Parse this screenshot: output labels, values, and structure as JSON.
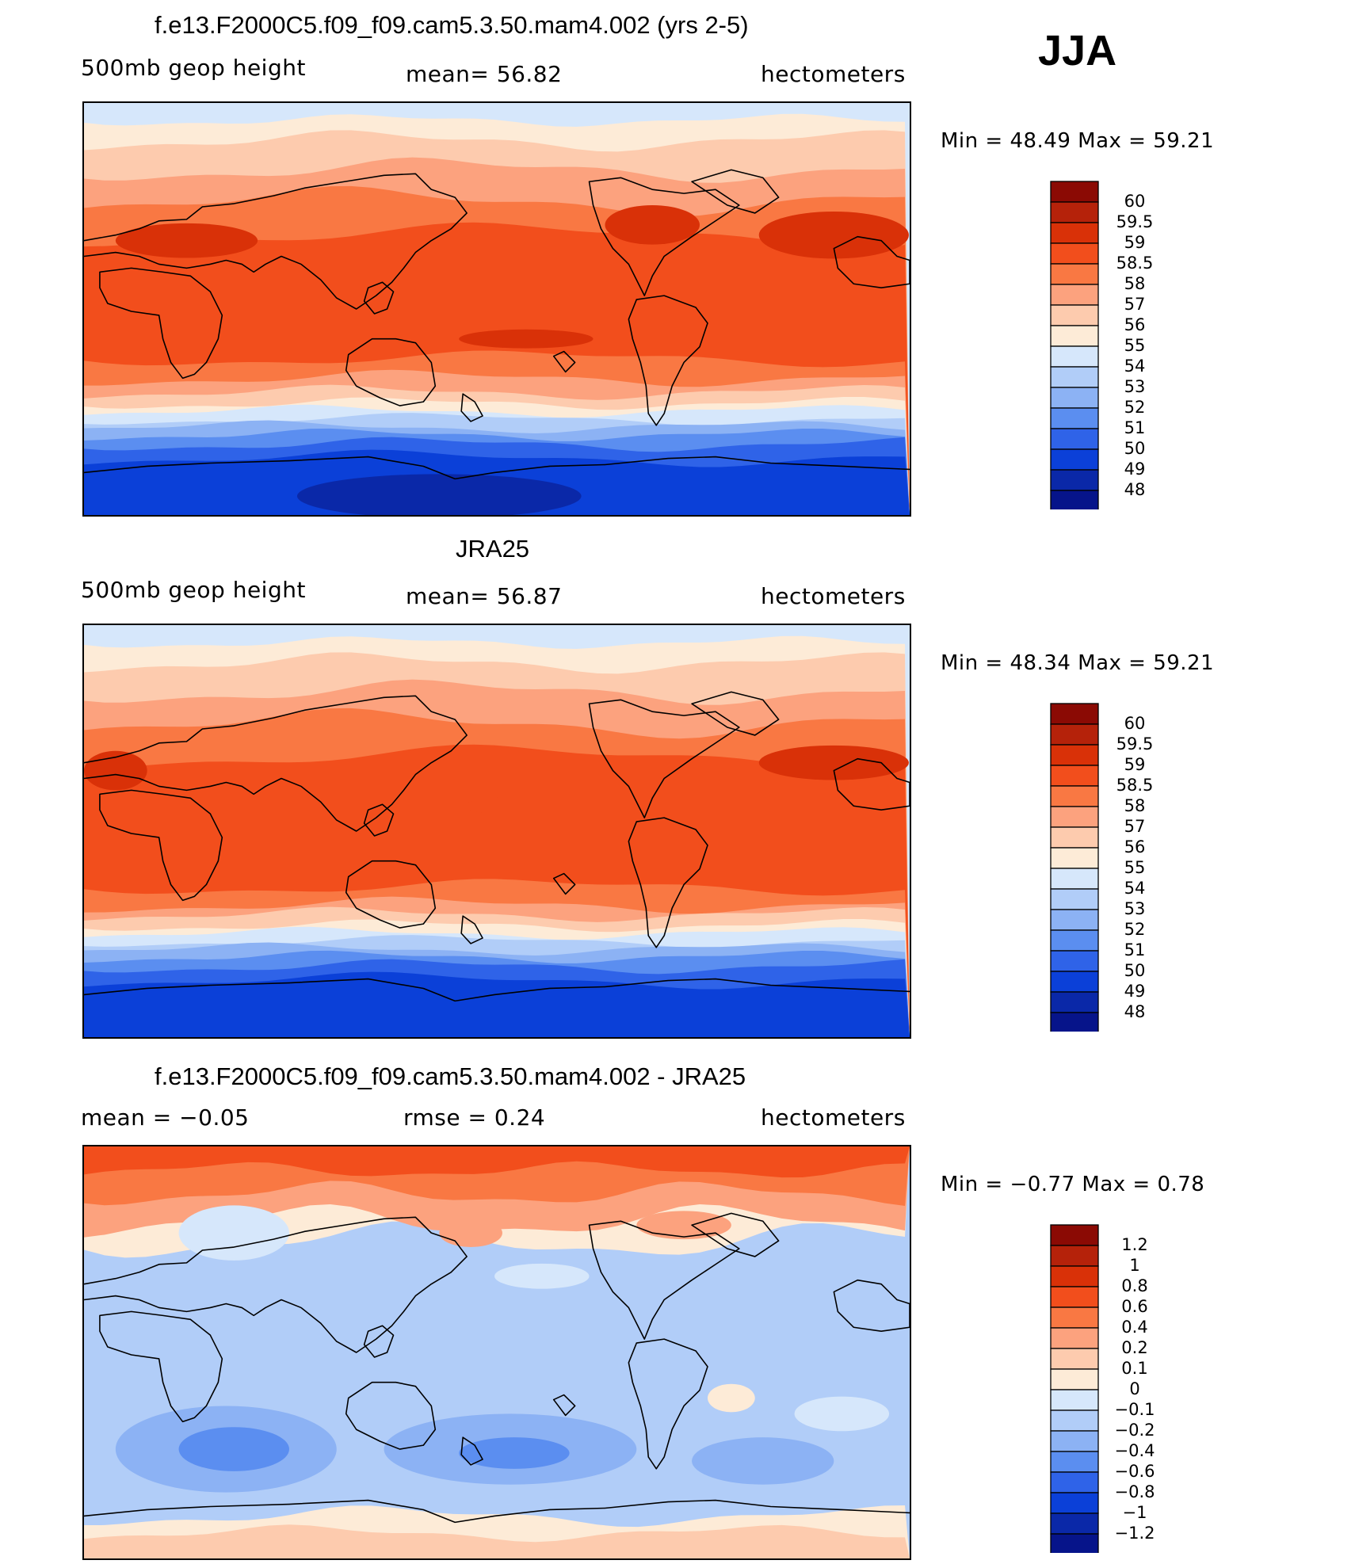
{
  "season": "JJA",
  "chart_data": [
    {
      "type": "heatmap",
      "title": "f.e13.F2000C5.f09_f09.cam5.3.50.mam4.002 (yrs 2-5)",
      "left_label": "500mb geop height",
      "center_label": "mean=   56.82",
      "right_label": "hectometers",
      "minmax_label": "Min =    48.49  Max =    59.21",
      "levels": [
        "60",
        "59.5",
        "59",
        "58.5",
        "58",
        "57",
        "56",
        "55",
        "54",
        "53",
        "52",
        "51",
        "50",
        "49",
        "48"
      ],
      "colors": [
        "#8b0a04",
        "#b5220a",
        "#d93108",
        "#f24e1c",
        "#f97843",
        "#fca27e",
        "#fdcbae",
        "#fdebd7",
        "#d6e7fb",
        "#b1cdf8",
        "#8cb2f4",
        "#5b8ef0",
        "#2f63e8",
        "#0b40d8",
        "#0a28a8",
        "#06148a"
      ]
    },
    {
      "type": "heatmap",
      "title": "JRA25",
      "left_label": "500mb geop height",
      "center_label": "mean=   56.87",
      "right_label": "hectometers",
      "minmax_label": "Min =    48.34  Max =    59.21",
      "levels": [
        "60",
        "59.5",
        "59",
        "58.5",
        "58",
        "57",
        "56",
        "55",
        "54",
        "53",
        "52",
        "51",
        "50",
        "49",
        "48"
      ],
      "colors": [
        "#8b0a04",
        "#b5220a",
        "#d93108",
        "#f24e1c",
        "#f97843",
        "#fca27e",
        "#fdcbae",
        "#fdebd7",
        "#d6e7fb",
        "#b1cdf8",
        "#8cb2f4",
        "#5b8ef0",
        "#2f63e8",
        "#0b40d8",
        "#0a28a8",
        "#06148a"
      ]
    },
    {
      "type": "heatmap",
      "title": "f.e13.F2000C5.f09_f09.cam5.3.50.mam4.002 - JRA25",
      "left_label": "mean =    −0.05",
      "center_label": "rmse =     0.24",
      "right_label": "hectometers",
      "minmax_label": "Min =    −0.77  Max =      0.78",
      "levels": [
        "1.2",
        "1",
        "0.8",
        "0.6",
        "0.4",
        "0.2",
        "0.1",
        "0",
        "−0.1",
        "−0.2",
        "−0.4",
        "−0.6",
        "−0.8",
        "−1",
        "−1.2"
      ],
      "colors": [
        "#8b0a04",
        "#b5220a",
        "#d93108",
        "#f24e1c",
        "#f97843",
        "#fca27e",
        "#fdcbae",
        "#fdebd7",
        "#d6e7fb",
        "#b1cdf8",
        "#8cb2f4",
        "#5b8ef0",
        "#2f63e8",
        "#0b40d8",
        "#0a28a8",
        "#06148a"
      ]
    }
  ]
}
